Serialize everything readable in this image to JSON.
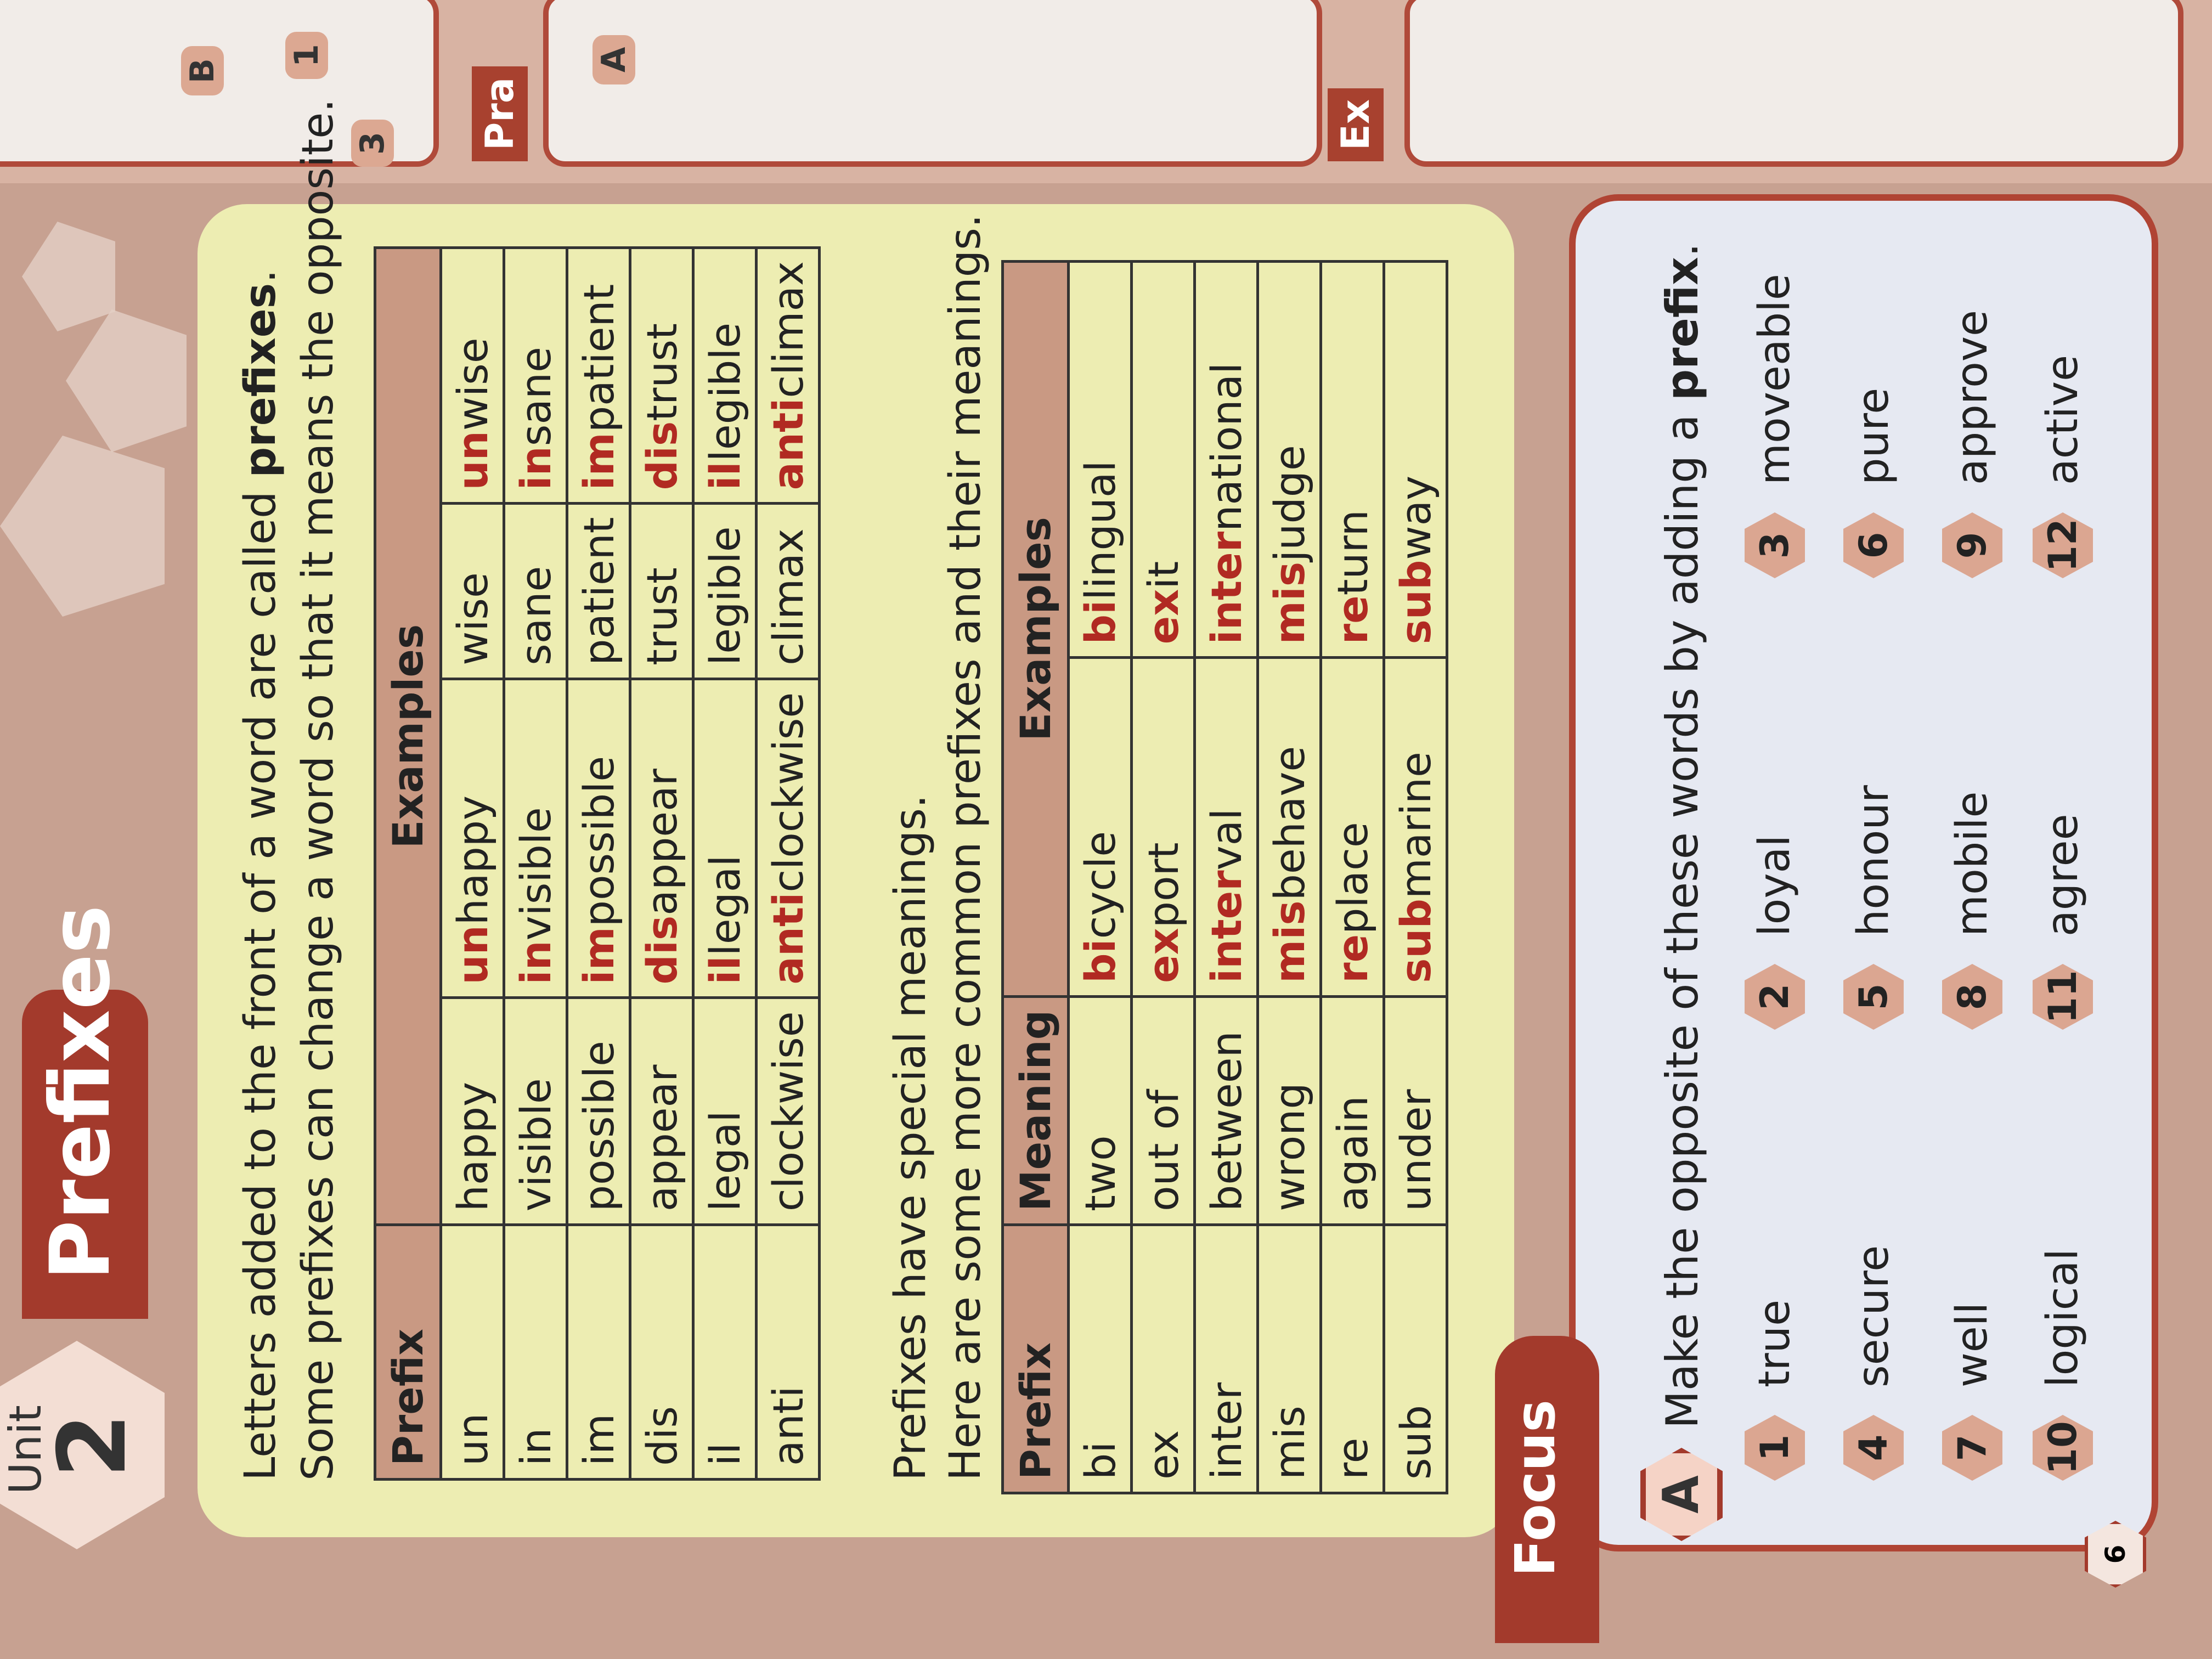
{
  "unit": {
    "label": "Unit",
    "number": "2"
  },
  "title": "Prefixes",
  "intro": {
    "line1_before": "Letters added to the front of a word are called ",
    "line1_bold": "prefixes",
    "line1_after": ".",
    "line2": "Some prefixes can change a word so that it means the opposite."
  },
  "table1": {
    "headers": [
      "Prefix",
      "Examples"
    ],
    "rows": [
      {
        "prefix": "un",
        "examples": [
          [
            "",
            "happy"
          ],
          [
            "un",
            "happy"
          ],
          [
            "",
            "wise"
          ],
          [
            "un",
            "wise"
          ]
        ]
      },
      {
        "prefix": "in",
        "examples": [
          [
            "",
            "visible"
          ],
          [
            "in",
            "visible"
          ],
          [
            "",
            "sane"
          ],
          [
            "in",
            "sane"
          ]
        ]
      },
      {
        "prefix": "im",
        "examples": [
          [
            "",
            "possible"
          ],
          [
            "im",
            "possible"
          ],
          [
            "",
            "patient"
          ],
          [
            "im",
            "patient"
          ]
        ]
      },
      {
        "prefix": "dis",
        "examples": [
          [
            "",
            "appear"
          ],
          [
            "dis",
            "appear"
          ],
          [
            "",
            "trust"
          ],
          [
            "dis",
            "trust"
          ]
        ]
      },
      {
        "prefix": "il",
        "examples": [
          [
            "",
            "legal"
          ],
          [
            "il",
            "legal"
          ],
          [
            "",
            "legible"
          ],
          [
            "il",
            "legible"
          ]
        ]
      },
      {
        "prefix": "anti",
        "examples": [
          [
            "",
            "clockwise"
          ],
          [
            "anti",
            "clockwise"
          ],
          [
            "",
            "climax"
          ],
          [
            "anti",
            "climax"
          ]
        ]
      }
    ]
  },
  "middle_text": {
    "line1": "Prefixes have special meanings.",
    "line2": "Here are some more common prefixes and their meanings."
  },
  "table2": {
    "headers": [
      "Prefix",
      "Meaning",
      "Examples"
    ],
    "rows": [
      {
        "prefix": "bi",
        "meaning": "two",
        "examples": [
          [
            "bi",
            "cycle"
          ],
          [
            "bi",
            "lingual"
          ]
        ]
      },
      {
        "prefix": "ex",
        "meaning": "out of",
        "examples": [
          [
            "ex",
            "port"
          ],
          [
            "ex",
            "it"
          ]
        ]
      },
      {
        "prefix": "inter",
        "meaning": "between",
        "examples": [
          [
            "inter",
            "val"
          ],
          [
            "inter",
            "national"
          ]
        ]
      },
      {
        "prefix": "mis",
        "meaning": "wrong",
        "examples": [
          [
            "mis",
            "behave"
          ],
          [
            "mis",
            "judge"
          ]
        ]
      },
      {
        "prefix": "re",
        "meaning": "again",
        "examples": [
          [
            "re",
            "place"
          ],
          [
            "re",
            "turn"
          ]
        ]
      },
      {
        "prefix": "sub",
        "meaning": "under",
        "examples": [
          [
            "sub",
            "marine"
          ],
          [
            "sub",
            "way"
          ]
        ]
      }
    ]
  },
  "focus": {
    "label": "Focus",
    "exercise_letter": "A",
    "instruction_before": "Make the opposite of these words by adding a ",
    "instruction_bold": "prefix",
    "instruction_after": ".",
    "items": [
      {
        "n": "1",
        "word": "true"
      },
      {
        "n": "2",
        "word": "loyal"
      },
      {
        "n": "3",
        "word": "moveable"
      },
      {
        "n": "4",
        "word": "secure"
      },
      {
        "n": "5",
        "word": "honour"
      },
      {
        "n": "6",
        "word": "pure"
      },
      {
        "n": "7",
        "word": "well"
      },
      {
        "n": "8",
        "word": "mobile"
      },
      {
        "n": "9",
        "word": "approve"
      },
      {
        "n": "10",
        "word": "logical"
      },
      {
        "n": "11",
        "word": "agree"
      },
      {
        "n": "12",
        "word": "active"
      }
    ]
  },
  "page_number": "6",
  "adjacent_page": {
    "badge_b": "B",
    "num_1": "1",
    "num_3": "3",
    "label_pra": "Pra",
    "badge_a": "A",
    "label_ex": "Ex"
  },
  "colors": {
    "accent_red": "#a33a2c",
    "prefix_red": "#b12a22",
    "panel_yellow": "#ededb2",
    "header_brown": "#c99983",
    "page_brown": "#c7a191"
  }
}
